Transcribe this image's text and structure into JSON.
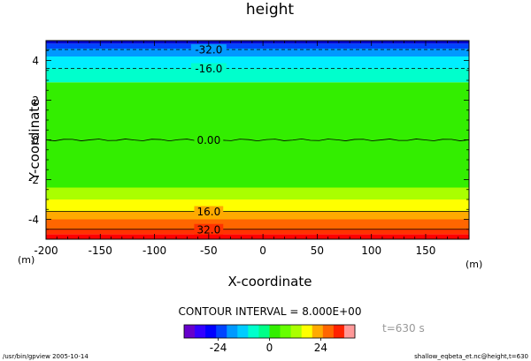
{
  "chart_data": {
    "type": "heatmap",
    "title": "height",
    "xlabel": "X-coordinate",
    "ylabel": "Y-coordinate",
    "x_unit": "(m)",
    "y_unit": "(m)",
    "xlim": [
      -200,
      190
    ],
    "ylim": [
      -5,
      5
    ],
    "x_ticks": [
      -200,
      -150,
      -100,
      -50,
      0,
      50,
      100,
      150
    ],
    "y_ticks": [
      -4,
      -2,
      0,
      2,
      4
    ],
    "bands": [
      {
        "y0": -5.0,
        "y1": -4.75,
        "color": "#ff0000"
      },
      {
        "y0": -4.75,
        "y1": -4.5,
        "color": "#ff3300"
      },
      {
        "y0": -4.5,
        "y1": -4.0,
        "color": "#ff6600"
      },
      {
        "y0": -4.0,
        "y1": -3.6,
        "color": "#ffaa00"
      },
      {
        "y0": -3.6,
        "y1": -3.0,
        "color": "#ffff00"
      },
      {
        "y0": -3.0,
        "y1": -2.4,
        "color": "#aaff00"
      },
      {
        "y0": -2.4,
        "y1": 2.9,
        "color": "#33ee00"
      },
      {
        "y0": 2.9,
        "y1": 3.6,
        "color": "#00ffcc"
      },
      {
        "y0": 3.6,
        "y1": 4.2,
        "color": "#00eeff"
      },
      {
        "y0": 4.2,
        "y1": 4.6,
        "color": "#0099ff"
      },
      {
        "y0": 4.6,
        "y1": 4.85,
        "color": "#0044ff"
      },
      {
        "y0": 4.85,
        "y1": 5.0,
        "color": "#0000cc"
      }
    ],
    "contours": [
      {
        "y": 4.55,
        "label": "-32.0",
        "dashed": true,
        "label_x": -50
      },
      {
        "y": 3.6,
        "label": "-16.0",
        "dashed": true,
        "label_x": -50
      },
      {
        "y": 0.0,
        "label": "0.00",
        "dashed": false,
        "wavy": true,
        "label_x": -50
      },
      {
        "y": -3.6,
        "label": "16.0",
        "dashed": false,
        "label_x": -50
      },
      {
        "y": -4.5,
        "label": "32.0",
        "dashed": false,
        "label_x": -50
      }
    ],
    "contour_interval_text": "CONTOUR INTERVAL = 8.000E+00",
    "colorbar": {
      "colors": [
        "#6600cc",
        "#3300ff",
        "#0000ff",
        "#0044ff",
        "#0099ff",
        "#00ccff",
        "#00ffcc",
        "#00ff88",
        "#33ee00",
        "#66ff00",
        "#aaff00",
        "#ffff00",
        "#ffaa00",
        "#ff6600",
        "#ff2200",
        "#ff9999"
      ],
      "tick_labels": [
        {
          "label": "-24",
          "value": -24
        },
        {
          "label": "0",
          "value": 0
        },
        {
          "label": "24",
          "value": 24
        }
      ],
      "range": [
        -40,
        40
      ]
    },
    "time_label": "t=630 s"
  },
  "footer": {
    "left": "/usr/bin/gpview  2005-10-14",
    "right": "shallow_eqbeta_et.nc@height,t=630"
  }
}
